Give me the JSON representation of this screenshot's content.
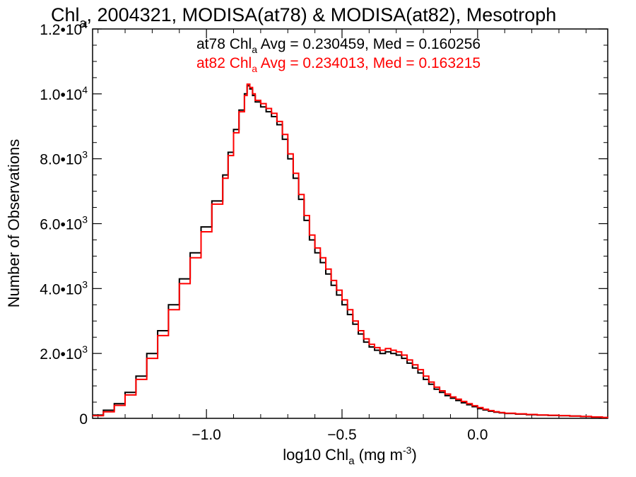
{
  "chart_data": {
    "type": "line",
    "title": {
      "prefix": "Chl",
      "sub": "a",
      "rest": ", 2004321, MODISA(at78) & MODISA(at82), Mesotroph"
    },
    "xlabel": {
      "prefix": "log10 Chl",
      "sub": "a",
      "mid": " (mg m",
      "sup": "-3",
      "end": ")"
    },
    "ylabel": "Number of Observations",
    "xlim": [
      -1.42,
      0.48
    ],
    "ylim": [
      0,
      12000
    ],
    "x_ticks": [
      {
        "value": -1.0,
        "label": "−1.0"
      },
      {
        "value": -0.5,
        "label": "−0.5"
      },
      {
        "value": 0.0,
        "label": "0.0"
      }
    ],
    "y_ticks": [
      {
        "value": 0,
        "mant": "0",
        "exp": ""
      },
      {
        "value": 2000,
        "mant": "2.0•10",
        "exp": "3"
      },
      {
        "value": 4000,
        "mant": "4.0•10",
        "exp": "3"
      },
      {
        "value": 6000,
        "mant": "6.0•10",
        "exp": "3"
      },
      {
        "value": 8000,
        "mant": "8.0•10",
        "exp": "3"
      },
      {
        "value": 10000,
        "mant": "1.0•10",
        "exp": "4"
      },
      {
        "value": 12000,
        "mant": "1.2•10",
        "exp": "4"
      }
    ],
    "annotations": [
      {
        "series": "at78",
        "prefix": "at78 Chl",
        "sub": "a",
        "rest": " Avg = 0.230459, Med = 0.160256",
        "color": "#000000"
      },
      {
        "series": "at82",
        "prefix": "at82 Chl",
        "sub": "a",
        "rest": " Avg = 0.234013, Med = 0.163215",
        "color": "#ff0000"
      }
    ],
    "series": [
      {
        "color": "#000000",
        "points": [
          [
            -1.42,
            100
          ],
          [
            -1.38,
            250
          ],
          [
            -1.34,
            450
          ],
          [
            -1.3,
            800
          ],
          [
            -1.26,
            1300
          ],
          [
            -1.22,
            2000
          ],
          [
            -1.18,
            2700
          ],
          [
            -1.14,
            3500
          ],
          [
            -1.1,
            4300
          ],
          [
            -1.06,
            5100
          ],
          [
            -1.02,
            5900
          ],
          [
            -0.98,
            6700
          ],
          [
            -0.94,
            7500
          ],
          [
            -0.92,
            8200
          ],
          [
            -0.9,
            8900
          ],
          [
            -0.88,
            9500
          ],
          [
            -0.86,
            10000
          ],
          [
            -0.85,
            10250
          ],
          [
            -0.84,
            10150
          ],
          [
            -0.83,
            9950
          ],
          [
            -0.82,
            9750
          ],
          [
            -0.8,
            9600
          ],
          [
            -0.78,
            9450
          ],
          [
            -0.76,
            9300
          ],
          [
            -0.74,
            9050
          ],
          [
            -0.72,
            8600
          ],
          [
            -0.7,
            8000
          ],
          [
            -0.68,
            7400
          ],
          [
            -0.66,
            6750
          ],
          [
            -0.64,
            6100
          ],
          [
            -0.62,
            5500
          ],
          [
            -0.6,
            5100
          ],
          [
            -0.58,
            4800
          ],
          [
            -0.56,
            4450
          ],
          [
            -0.54,
            4100
          ],
          [
            -0.52,
            3800
          ],
          [
            -0.5,
            3500
          ],
          [
            -0.48,
            3200
          ],
          [
            -0.46,
            2900
          ],
          [
            -0.44,
            2600
          ],
          [
            -0.42,
            2350
          ],
          [
            -0.4,
            2200
          ],
          [
            -0.38,
            2100
          ],
          [
            -0.36,
            2000
          ],
          [
            -0.34,
            2050
          ],
          [
            -0.32,
            2000
          ],
          [
            -0.3,
            1950
          ],
          [
            -0.28,
            1850
          ],
          [
            -0.26,
            1700
          ],
          [
            -0.24,
            1550
          ],
          [
            -0.22,
            1400
          ],
          [
            -0.2,
            1200
          ],
          [
            -0.18,
            1050
          ],
          [
            -0.16,
            900
          ],
          [
            -0.14,
            800
          ],
          [
            -0.12,
            700
          ],
          [
            -0.1,
            620
          ],
          [
            -0.08,
            550
          ],
          [
            -0.06,
            480
          ],
          [
            -0.04,
            420
          ],
          [
            -0.02,
            360
          ],
          [
            0.0,
            300
          ],
          [
            0.02,
            260
          ],
          [
            0.04,
            220
          ],
          [
            0.06,
            190
          ],
          [
            0.08,
            170
          ],
          [
            0.1,
            150
          ],
          [
            0.14,
            130
          ],
          [
            0.18,
            110
          ],
          [
            0.22,
            100
          ],
          [
            0.26,
            90
          ],
          [
            0.3,
            80
          ],
          [
            0.34,
            70
          ],
          [
            0.38,
            55
          ],
          [
            0.42,
            40
          ],
          [
            0.46,
            25
          ],
          [
            0.48,
            15
          ]
        ]
      },
      {
        "color": "#ff0000",
        "points": [
          [
            -1.42,
            80
          ],
          [
            -1.38,
            200
          ],
          [
            -1.34,
            400
          ],
          [
            -1.3,
            720
          ],
          [
            -1.26,
            1200
          ],
          [
            -1.22,
            1850
          ],
          [
            -1.18,
            2550
          ],
          [
            -1.14,
            3350
          ],
          [
            -1.1,
            4150
          ],
          [
            -1.06,
            4950
          ],
          [
            -1.02,
            5750
          ],
          [
            -0.98,
            6600
          ],
          [
            -0.94,
            7400
          ],
          [
            -0.92,
            8100
          ],
          [
            -0.9,
            8800
          ],
          [
            -0.88,
            9450
          ],
          [
            -0.86,
            9950
          ],
          [
            -0.85,
            10300
          ],
          [
            -0.84,
            10200
          ],
          [
            -0.83,
            10000
          ],
          [
            -0.82,
            9800
          ],
          [
            -0.8,
            9700
          ],
          [
            -0.78,
            9550
          ],
          [
            -0.76,
            9400
          ],
          [
            -0.74,
            9150
          ],
          [
            -0.72,
            8750
          ],
          [
            -0.7,
            8150
          ],
          [
            -0.68,
            7550
          ],
          [
            -0.66,
            6900
          ],
          [
            -0.64,
            6250
          ],
          [
            -0.62,
            5650
          ],
          [
            -0.6,
            5250
          ],
          [
            -0.58,
            4950
          ],
          [
            -0.56,
            4600
          ],
          [
            -0.54,
            4250
          ],
          [
            -0.52,
            3950
          ],
          [
            -0.5,
            3650
          ],
          [
            -0.48,
            3350
          ],
          [
            -0.46,
            3000
          ],
          [
            -0.44,
            2700
          ],
          [
            -0.42,
            2450
          ],
          [
            -0.4,
            2280
          ],
          [
            -0.38,
            2180
          ],
          [
            -0.36,
            2100
          ],
          [
            -0.34,
            2150
          ],
          [
            -0.32,
            2100
          ],
          [
            -0.3,
            2050
          ],
          [
            -0.28,
            1950
          ],
          [
            -0.26,
            1800
          ],
          [
            -0.24,
            1650
          ],
          [
            -0.22,
            1500
          ],
          [
            -0.2,
            1300
          ],
          [
            -0.18,
            1120
          ],
          [
            -0.16,
            960
          ],
          [
            -0.14,
            850
          ],
          [
            -0.12,
            750
          ],
          [
            -0.1,
            660
          ],
          [
            -0.08,
            590
          ],
          [
            -0.06,
            520
          ],
          [
            -0.04,
            450
          ],
          [
            -0.02,
            390
          ],
          [
            0.0,
            330
          ],
          [
            0.02,
            280
          ],
          [
            0.04,
            240
          ],
          [
            0.06,
            205
          ],
          [
            0.08,
            180
          ],
          [
            0.1,
            160
          ],
          [
            0.14,
            140
          ],
          [
            0.18,
            120
          ],
          [
            0.22,
            105
          ],
          [
            0.26,
            95
          ],
          [
            0.3,
            85
          ],
          [
            0.34,
            72
          ],
          [
            0.38,
            58
          ],
          [
            0.42,
            42
          ],
          [
            0.46,
            28
          ],
          [
            0.48,
            18
          ]
        ]
      }
    ]
  }
}
